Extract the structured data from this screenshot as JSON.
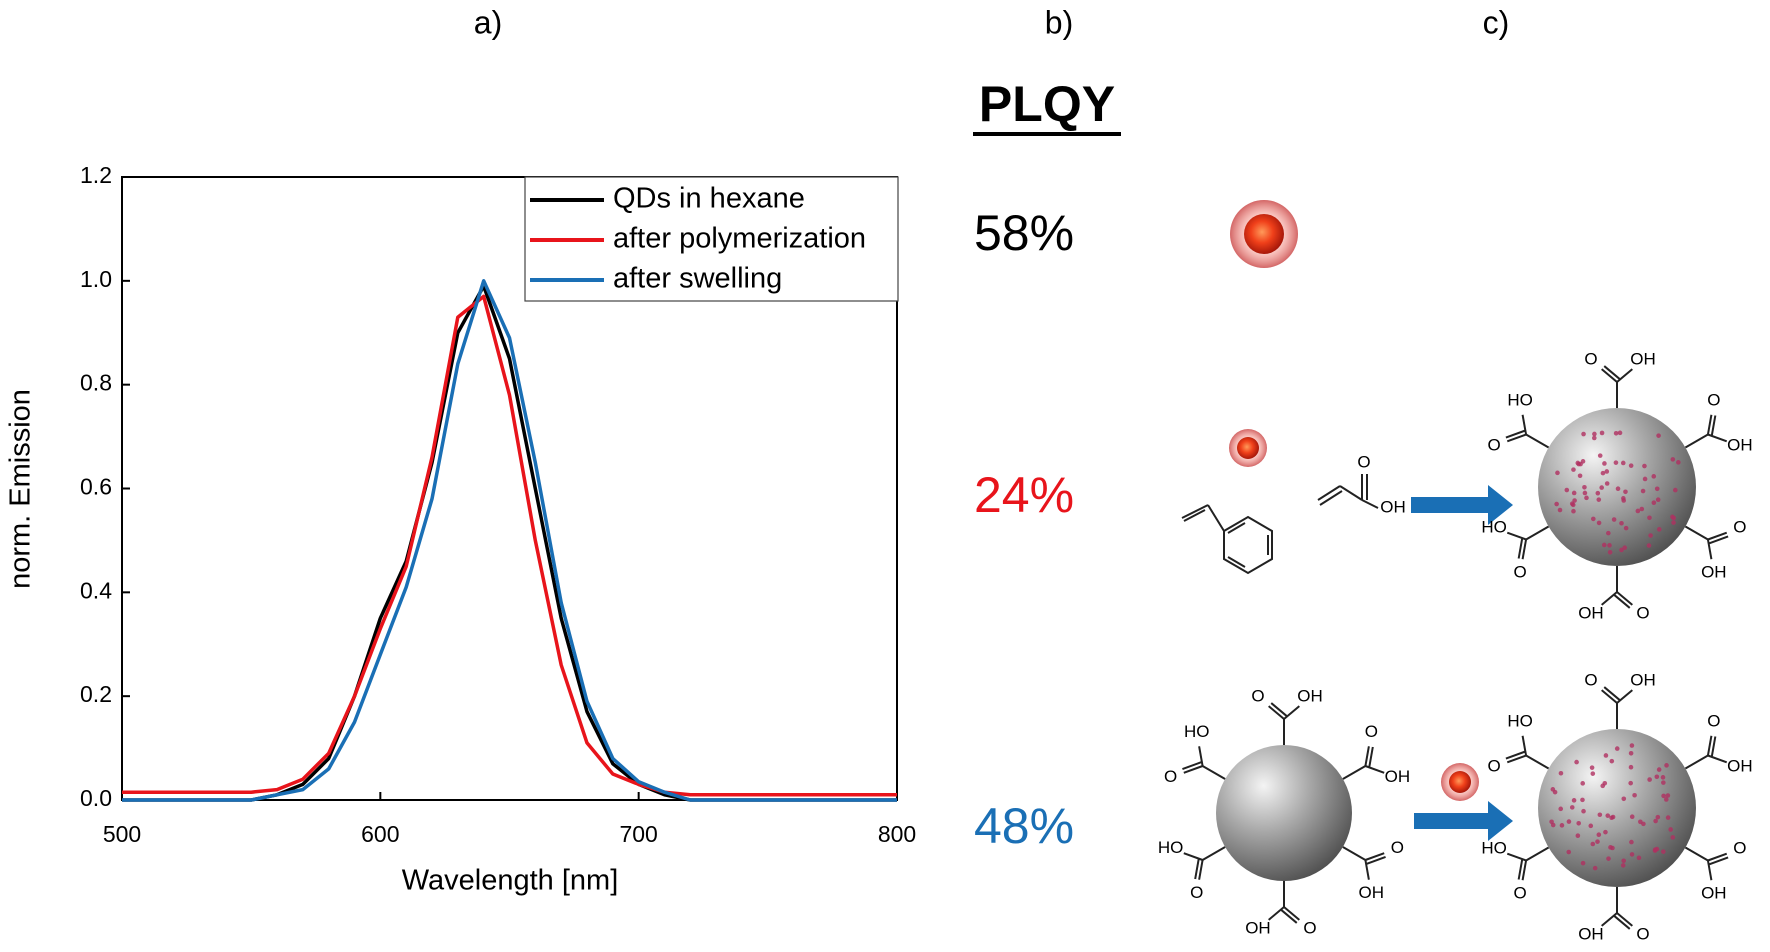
{
  "chart_data": {
    "type": "line",
    "xlabel": "Wavelength [nm]",
    "ylabel": "norm. Emission",
    "x": [
      500,
      510,
      520,
      530,
      540,
      550,
      560,
      570,
      580,
      590,
      600,
      610,
      620,
      630,
      640,
      650,
      660,
      670,
      680,
      690,
      700,
      710,
      720,
      730,
      740,
      750,
      760,
      770,
      780,
      790,
      800
    ],
    "series": [
      {
        "name": "QDs in hexane",
        "color": "#000000",
        "values": [
          0,
          0,
          0,
          0,
          0,
          0,
          0.01,
          0.03,
          0.08,
          0.2,
          0.35,
          0.46,
          0.65,
          0.9,
          0.99,
          0.85,
          0.6,
          0.35,
          0.17,
          0.07,
          0.03,
          0.01,
          0,
          0,
          0,
          0,
          0,
          0,
          0,
          0,
          0
        ]
      },
      {
        "name": "after polymerization",
        "color": "#e8141b",
        "values": [
          0.015,
          0.015,
          0.015,
          0.015,
          0.015,
          0.015,
          0.02,
          0.04,
          0.09,
          0.2,
          0.33,
          0.45,
          0.66,
          0.93,
          0.97,
          0.78,
          0.5,
          0.26,
          0.11,
          0.05,
          0.03,
          0.015,
          0.01,
          0.01,
          0.01,
          0.01,
          0.01,
          0.01,
          0.01,
          0.01,
          0.01
        ]
      },
      {
        "name": "after swelling",
        "color": "#1a6fb5",
        "values": [
          0,
          0,
          0,
          0,
          0,
          0,
          0.01,
          0.02,
          0.06,
          0.15,
          0.28,
          0.41,
          0.58,
          0.84,
          1.0,
          0.89,
          0.65,
          0.38,
          0.19,
          0.08,
          0.035,
          0.015,
          0,
          0,
          0,
          0,
          0,
          0,
          0,
          0,
          0
        ]
      }
    ],
    "xlim": [
      500,
      800
    ],
    "xticks": [
      500,
      600,
      700,
      800
    ],
    "ylim": [
      0,
      1.2
    ],
    "yticks": [
      {
        "value": 0,
        "label": "0.0"
      },
      0.2,
      0.4,
      0.6,
      0.8,
      {
        "value": 1,
        "label": "1.0"
      },
      1.2
    ],
    "legend": "upper right",
    "grid": false
  },
  "panels": {
    "a": "a)",
    "b": "b)",
    "c": "c)"
  },
  "plqy": {
    "title": "PLQY",
    "entries": [
      {
        "text": "58%",
        "color": "#000000"
      },
      {
        "text": "24%",
        "color": "#e8141b"
      },
      {
        "text": "48%",
        "color": "#1a6fb5"
      }
    ]
  },
  "chem": {
    "o": "O",
    "oh": "OH",
    "ho": "HO"
  }
}
